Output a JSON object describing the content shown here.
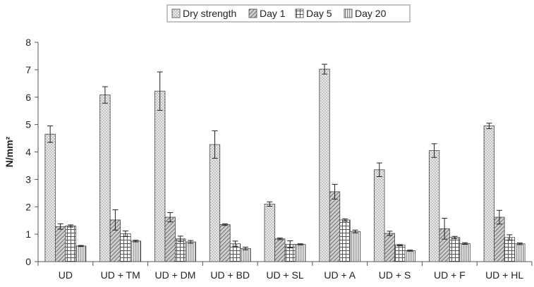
{
  "chart_data": {
    "type": "bar",
    "title": "",
    "xlabel": "",
    "ylabel": "N/mm²",
    "ylim": [
      0,
      8
    ],
    "yticks": [
      0,
      1,
      2,
      3,
      4,
      5,
      6,
      7,
      8
    ],
    "grid": false,
    "legend_position": "top-center",
    "categories": [
      "UD",
      "UD + TM",
      "UD + DM",
      "UD + BD",
      "UD + SL",
      "UD + A",
      "UD + S",
      "UD + F",
      "UD + HL"
    ],
    "series": [
      {
        "name": "Dry strength",
        "pattern": "dots",
        "values": [
          4.65,
          6.08,
          6.22,
          4.27,
          2.1,
          7.02,
          3.35,
          4.05,
          4.95
        ],
        "errors": [
          0.3,
          0.3,
          0.7,
          0.5,
          0.08,
          0.18,
          0.25,
          0.25,
          0.1
        ]
      },
      {
        "name": "Day 1",
        "pattern": "diagonal",
        "values": [
          1.28,
          1.52,
          1.62,
          1.35,
          0.83,
          2.55,
          1.03,
          1.2,
          1.62
        ],
        "errors": [
          0.1,
          0.37,
          0.17,
          0.03,
          0.03,
          0.27,
          0.08,
          0.38,
          0.25
        ]
      },
      {
        "name": "Day 5",
        "pattern": "grid",
        "values": [
          1.3,
          1.02,
          0.83,
          0.65,
          0.63,
          1.52,
          0.6,
          0.88,
          0.88
        ],
        "errors": [
          0.04,
          0.1,
          0.1,
          0.1,
          0.13,
          0.04,
          0.02,
          0.04,
          0.1
        ]
      },
      {
        "name": "Day 20",
        "pattern": "vertical",
        "values": [
          0.57,
          0.75,
          0.72,
          0.48,
          0.63,
          1.1,
          0.4,
          0.66,
          0.65
        ],
        "errors": [
          0.02,
          0.03,
          0.05,
          0.05,
          0.02,
          0.05,
          0.02,
          0.03,
          0.03
        ]
      }
    ],
    "colors": {
      "axis": "#555555",
      "bar_fill": "#e8e8e8",
      "pattern": "#555555",
      "bar_stroke": "#444444"
    }
  }
}
